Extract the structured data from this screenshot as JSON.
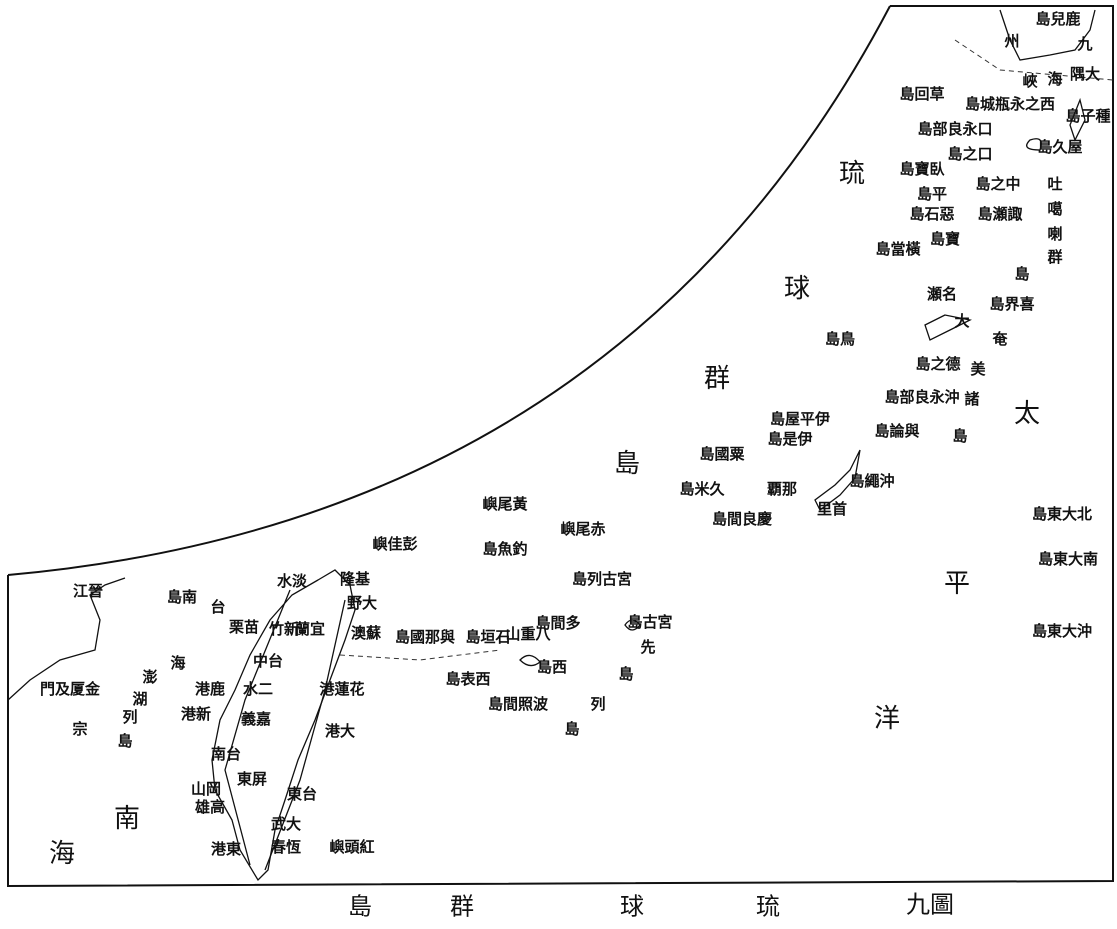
{
  "labels": [
    "島兒鹿",
    "州",
    "九",
    "峽",
    "海",
    "隅大",
    "島回草",
    "島城瓶永之西",
    "島子種",
    "島部良永口",
    "島之口",
    "島久屋",
    "島寶臥",
    "島之中",
    "吐",
    "島平",
    "噶",
    "喇",
    "群",
    "島",
    "島石惡",
    "島瀬諏",
    "島寶",
    "島當橫",
    "瀬名",
    "島界喜",
    "大",
    "奄",
    "美",
    "諸",
    "島",
    "島鳥",
    "島之德",
    "島部良永沖",
    "島屋平伊",
    "島是伊",
    "島論與",
    "島國粟",
    "島米久",
    "覇那",
    "島間良慶",
    "島繩沖",
    "里首",
    "嶼尾黃",
    "嶼尾赤",
    "嶼佳彭",
    "島魚釣",
    "島列古宮",
    "島古宮",
    "島國那與",
    "島垣石",
    "山重八",
    "島間多",
    "先",
    "島",
    "列",
    "島",
    "島表西",
    "島西",
    "島間照波",
    "島東大北",
    "島東大南",
    "島東大沖",
    "江晉",
    "島南",
    "門及厦金",
    "湖",
    "澎",
    "列",
    "島",
    "宗",
    "台",
    "海",
    "隆基",
    "水淡",
    "野大",
    "澳蘇",
    "栗苗",
    "竹新",
    "蘭宜",
    "中台",
    "港鹿",
    "水二",
    "港蓮花",
    "港新",
    "義嘉",
    "港大",
    "南台",
    "東屏",
    "東台",
    "山岡",
    "雄高",
    "武大",
    "春恆",
    "港東",
    "嶼頭紅"
  ],
  "big_labels": [
    "琉",
    "球",
    "群",
    "島",
    "太",
    "平",
    "洋",
    "南",
    "海"
  ],
  "caption": [
    "島",
    "群",
    "球",
    "琉",
    "九圖"
  ]
}
